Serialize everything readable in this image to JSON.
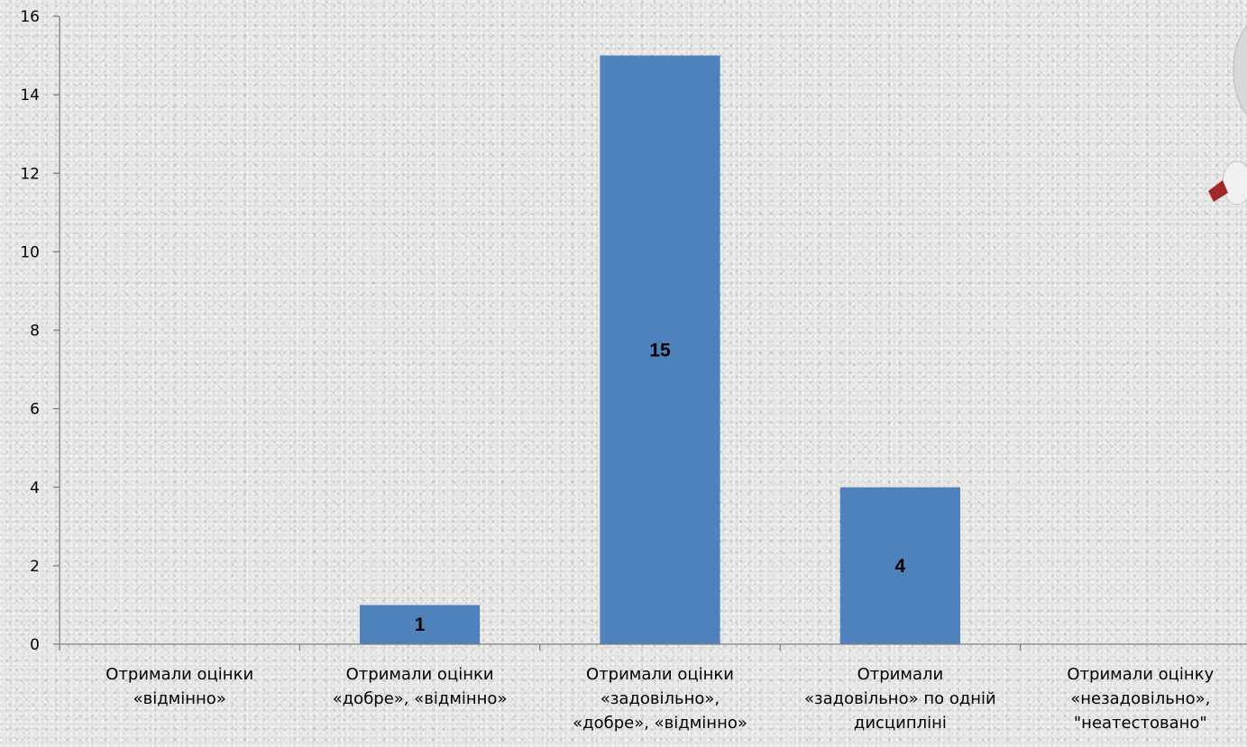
{
  "chart_data": {
    "type": "bar",
    "categories": [
      [
        "Отримали оцінки",
        "«відмінно»"
      ],
      [
        "Отримали оцінки",
        "«добре», «відмінно»"
      ],
      [
        "Отримали оцінки",
        "«задовільно»,",
        "«добре»,  «відмінно»"
      ],
      [
        "Отримали",
        "«задовільно» по одній",
        "дисципліні"
      ],
      [
        "Отримали оцінку",
        "«незадовільно»,",
        "\"неатестовано\""
      ]
    ],
    "values": [
      0,
      1,
      15,
      4,
      0
    ],
    "data_labels": [
      "",
      "1",
      "15",
      "4",
      ""
    ],
    "ylim": [
      0,
      16
    ],
    "yticks": [
      0,
      2,
      4,
      6,
      8,
      10,
      12,
      14,
      16
    ],
    "title": "",
    "xlabel": "",
    "ylabel": "",
    "grid": false,
    "legend": "none",
    "bar_color": "#4f81bd"
  }
}
